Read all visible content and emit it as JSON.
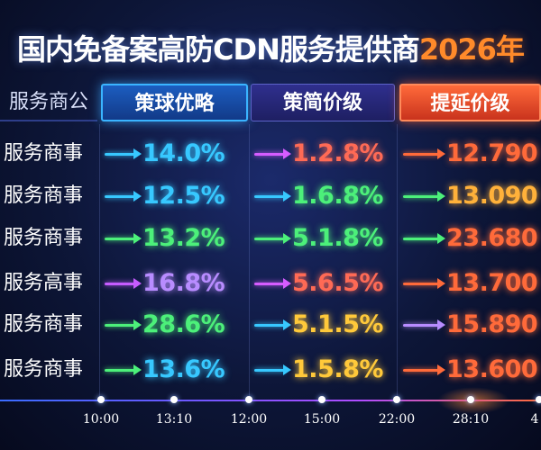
{
  "title": {
    "main": "国内免备案高防CDN服务提供商",
    "year": "2026年"
  },
  "header": {
    "col0": "服务商公",
    "col1": "策球优略",
    "col2": "策简价级",
    "col3": "提延价级"
  },
  "rows": [
    {
      "label": "服务商事",
      "v1": "14.0%",
      "v2": "1.2.8%",
      "v3": "12.790"
    },
    {
      "label": "服务商事",
      "v1": "12.5%",
      "v2": "1.6.8%",
      "v3": "13.090"
    },
    {
      "label": "服务商事",
      "v1": "13.2%",
      "v2": "5.1.8%",
      "v3": "23.680"
    },
    {
      "label": "服务高事",
      "v1": "16.8%",
      "v2": "5.6.5%",
      "v3": "13.700"
    },
    {
      "label": "服务商事",
      "v1": "28.6%",
      "v2": "5.1.5%",
      "v3": "15.890"
    },
    {
      "label": "服务商事",
      "v1": "13.6%",
      "v2": "1.5.8%",
      "v3": "13.600"
    }
  ],
  "colors": {
    "c1": [
      "#37c8ff",
      "#37c8ff",
      "#4cf07a",
      "#b88cff",
      "#4cf07a",
      "#37c8ff"
    ],
    "c2": [
      "#ff6a55",
      "#4cf07a",
      "#4cf07a",
      "#ff6a55",
      "#ffc93a",
      "#ffc93a"
    ],
    "c3": [
      "#ff6a3a",
      "#ffb13a",
      "#ff6a3a",
      "#ff6a3a",
      "#ff6a3a",
      "#ff6a3a"
    ],
    "a1": [
      "#37c8ff",
      "#37c8ff",
      "#4cf07a",
      "#c65cff",
      "#4cf07a",
      "#4cf07a"
    ],
    "a2": [
      "#d65cff",
      "#37c8ff",
      "#4cf07a",
      "#d65cff",
      "#37c8ff",
      "#37c8ff"
    ],
    "a3": [
      "#ff6a3a",
      "#4cf07a",
      "#4cf07a",
      "#ff6a3a",
      "#b88cff",
      "#ff6a3a"
    ]
  },
  "timeline": {
    "labels": [
      "10:00",
      "13:10",
      "12:00",
      "15:00",
      "22:00",
      "28:10",
      "4"
    ]
  }
}
